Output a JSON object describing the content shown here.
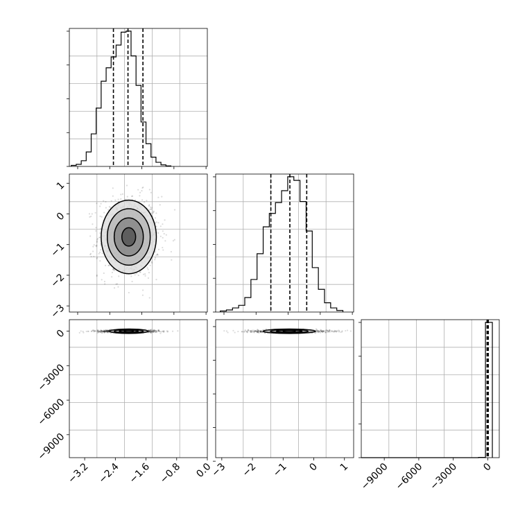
{
  "chart_data": {
    "type": "corner",
    "title": "",
    "grid": true,
    "parameters": [
      {
        "xlim": [
          -3.6,
          0.0
        ],
        "ylim": [
          -3.2,
          1.3
        ]
      },
      {
        "xlim": [
          -3.2,
          1.3
        ]
      },
      {
        "xlim": [
          -11000,
          1000
        ]
      }
    ],
    "panels": [
      {
        "id": "p0-hist",
        "type": "histogram",
        "row": 0,
        "col": 0,
        "xlim": [
          -3.6,
          0.0
        ],
        "bin_edges": [
          -3.55,
          -3.42,
          -3.29,
          -3.16,
          -3.03,
          -2.9,
          -2.77,
          -2.64,
          -2.51,
          -2.38,
          -2.25,
          -2.12,
          -1.99,
          -1.86,
          -1.73,
          -1.6,
          -1.47,
          -1.34,
          -1.21,
          -1.08,
          -0.95
        ],
        "counts": [
          2,
          4,
          11,
          28,
          63,
          113,
          165,
          191,
          212,
          235,
          260,
          262,
          214,
          157,
          86,
          44,
          18,
          8,
          3,
          1
        ],
        "quantiles": [
          -2.45,
          -2.07,
          -1.68
        ],
        "x_ticks": [],
        "y_ticks": []
      },
      {
        "id": "p1-hist",
        "type": "histogram",
        "row": 1,
        "col": 1,
        "xlim": [
          -3.2,
          1.3
        ],
        "bin_edges": [
          -3.05,
          -2.85,
          -2.65,
          -2.45,
          -2.25,
          -2.05,
          -1.85,
          -1.65,
          -1.45,
          -1.25,
          -1.05,
          -0.85,
          -0.65,
          -0.45,
          -0.25,
          -0.05,
          0.15,
          0.35,
          0.55,
          0.75,
          0.95
        ],
        "counts": [
          2,
          4,
          8,
          13,
          28,
          63,
          113,
          165,
          191,
          212,
          235,
          262,
          255,
          214,
          157,
          86,
          44,
          18,
          8,
          3
        ],
        "quantiles": [
          -1.4,
          -0.78,
          -0.23
        ],
        "x_ticks": [],
        "y_ticks": []
      },
      {
        "id": "p2-hist",
        "type": "histogram",
        "row": 2,
        "col": 2,
        "xlim": [
          -11000,
          1000
        ],
        "bin_edges": [
          -11000,
          -10400,
          -9800,
          -9200,
          -8600,
          -8000,
          -7400,
          -6800,
          -6200,
          -5600,
          -5000,
          -4400,
          -3800,
          -3200,
          -2600,
          -2000,
          -1400,
          -800,
          -200,
          400
        ],
        "counts": [
          0,
          0,
          0,
          0,
          0,
          0,
          0,
          0,
          0,
          0,
          0,
          0,
          0,
          0,
          0,
          0,
          0,
          2,
          1000
        ],
        "quantiles": [
          -60,
          -5,
          45
        ],
        "x_ticks": [
          -9000,
          -6000,
          -3000,
          0
        ],
        "x_tick_labels": [
          "−9000",
          "−6000",
          "−3000",
          "0"
        ],
        "y_ticks": []
      },
      {
        "id": "p10-2d",
        "type": "hist2d",
        "row": 1,
        "col": 0,
        "xlim": [
          -3.6,
          0.0
        ],
        "ylim": [
          -3.2,
          1.3
        ],
        "center": [
          -2.05,
          -0.75
        ],
        "sigma": [
          0.38,
          0.63
        ],
        "contour_radii_x": [
          0.18,
          0.38,
          0.56,
          0.72
        ],
        "contour_radii_y": [
          0.3,
          0.62,
          0.92,
          1.2
        ],
        "y_ticks": [
          -3,
          -2,
          -1,
          0,
          1
        ],
        "y_tick_labels": [
          "−3",
          "−2",
          "−1",
          "0",
          "1"
        ],
        "x_ticks": []
      },
      {
        "id": "p20-2d",
        "type": "hist2d",
        "row": 2,
        "col": 0,
        "xlim": [
          -3.6,
          0.0
        ],
        "ylim": [
          -11000,
          1000
        ],
        "center": [
          -2.05,
          -5
        ],
        "sigma": [
          0.38,
          60
        ],
        "contour_radii_x": [
          0.12,
          0.25,
          0.38,
          0.5
        ],
        "contour_radii_y": [
          40,
          90,
          140,
          190
        ],
        "x_ticks": [
          -3.2,
          -2.4,
          -1.6,
          -0.8,
          0.0
        ],
        "x_tick_labels": [
          "−3.2",
          "−2.4",
          "−1.6",
          "−0.8",
          "0.0"
        ],
        "y_ticks": [
          -9000,
          -6000,
          -3000,
          0
        ],
        "y_tick_labels": [
          "−9000",
          "−6000",
          "−3000",
          "0"
        ]
      },
      {
        "id": "p21-2d",
        "type": "hist2d",
        "row": 2,
        "col": 1,
        "xlim": [
          -3.2,
          1.3
        ],
        "ylim": [
          -11000,
          1000
        ],
        "center": [
          -0.8,
          -5
        ],
        "sigma": [
          0.63,
          60
        ],
        "contour_radii_x": [
          0.2,
          0.42,
          0.62,
          0.85
        ],
        "contour_radii_y": [
          40,
          90,
          140,
          190
        ],
        "x_ticks": [
          -3,
          -2,
          -1,
          0,
          1
        ],
        "x_tick_labels": [
          "−3",
          "−2",
          "−1",
          "0",
          "1"
        ],
        "y_ticks": []
      }
    ]
  }
}
